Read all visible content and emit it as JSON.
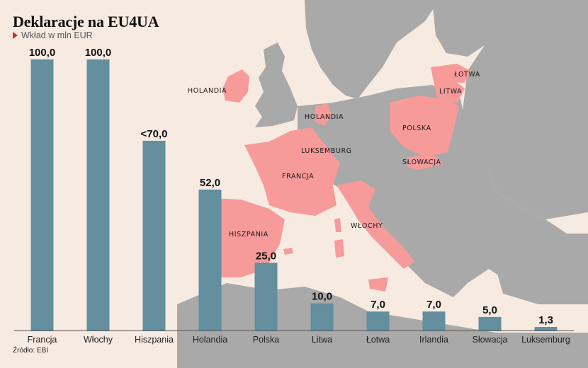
{
  "title": "Deklaracje na EU4UA",
  "subtitle": "Wkład w mln EUR",
  "source": "Źródło: EBI",
  "colors": {
    "background": "#f7ebe1",
    "sea": "#f7ebe1",
    "land": "#a9a9a9",
    "highlight": "#f79a9a",
    "bar": "#638f9e",
    "accent_triangle": "#d62b2b"
  },
  "map_labels": [
    "HOLANDIA",
    "HOLANDIA",
    "LUKSEMBURG",
    "FRANCJA",
    "HISZPANIA",
    "WŁOCHY",
    "POLSKA",
    "SŁOWACJA",
    "ŁOTWA",
    "LITWA"
  ],
  "chart_data": {
    "type": "bar",
    "title": "Deklaracje na EU4UA",
    "subtitle": "Wkład w mln EUR",
    "categories": [
      "Francja",
      "Włochy",
      "Hiszpania",
      "Holandia",
      "Polska",
      "Litwa",
      "Łotwa",
      "Irlandia",
      "Słowacja",
      "Luksemburg"
    ],
    "values": [
      100.0,
      100.0,
      70.0,
      52.0,
      25.0,
      10.0,
      7.0,
      7.0,
      5.0,
      1.3
    ],
    "value_labels": [
      "100,0",
      "100,0",
      "<70,0",
      "52,0",
      "25,0",
      "10,0",
      "7,0",
      "7,0",
      "5,0",
      "1,3"
    ],
    "xlabel": "",
    "ylabel": "",
    "ylim": [
      0,
      100
    ],
    "grid": false,
    "legend": "none"
  }
}
